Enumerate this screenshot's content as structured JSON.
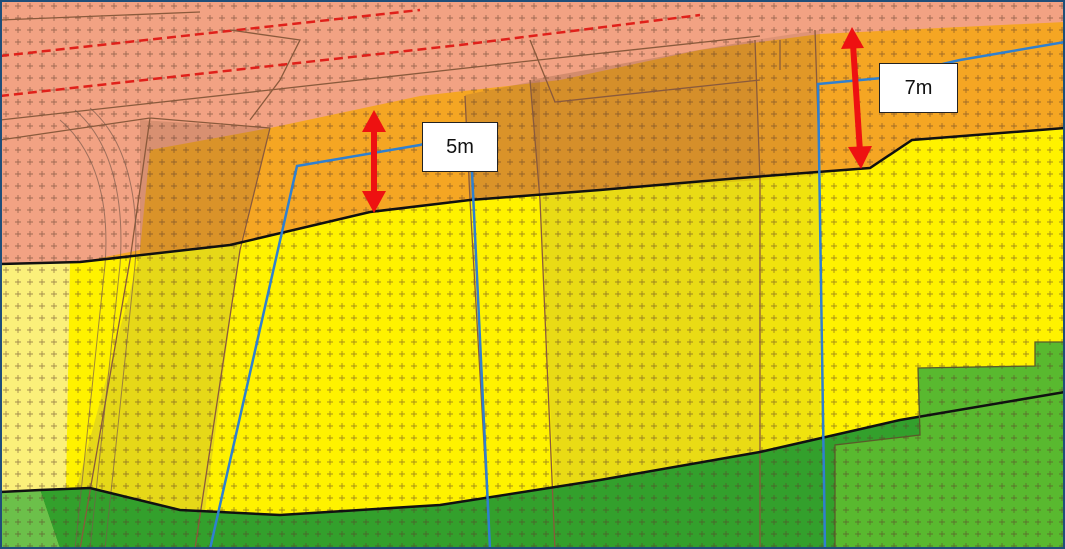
{
  "map": {
    "labels": {
      "left_clearance": "5m",
      "right_clearance": "7m"
    },
    "colors": {
      "frame_border": "#1f4e79",
      "zone_salmon": "#f2a283",
      "zone_salmon_dark": "#c9785c",
      "zone_orange": "#f5a623",
      "zone_yellow": "#fff200",
      "zone_pale_yellow": "#fbf07a",
      "zone_green": "#33a02c",
      "zone_light_green": "#6cc04a",
      "zone_lime": "#59b92f",
      "boundary_black": "#111111",
      "boundary_blue": "#2f80d0",
      "parcel_brown": "#8a5a3c",
      "measure_arrow": "#ee1111",
      "dashed_red": "#e0201a"
    },
    "icons": [
      "double-headed-arrow-icon",
      "double-headed-arrow-icon"
    ]
  }
}
